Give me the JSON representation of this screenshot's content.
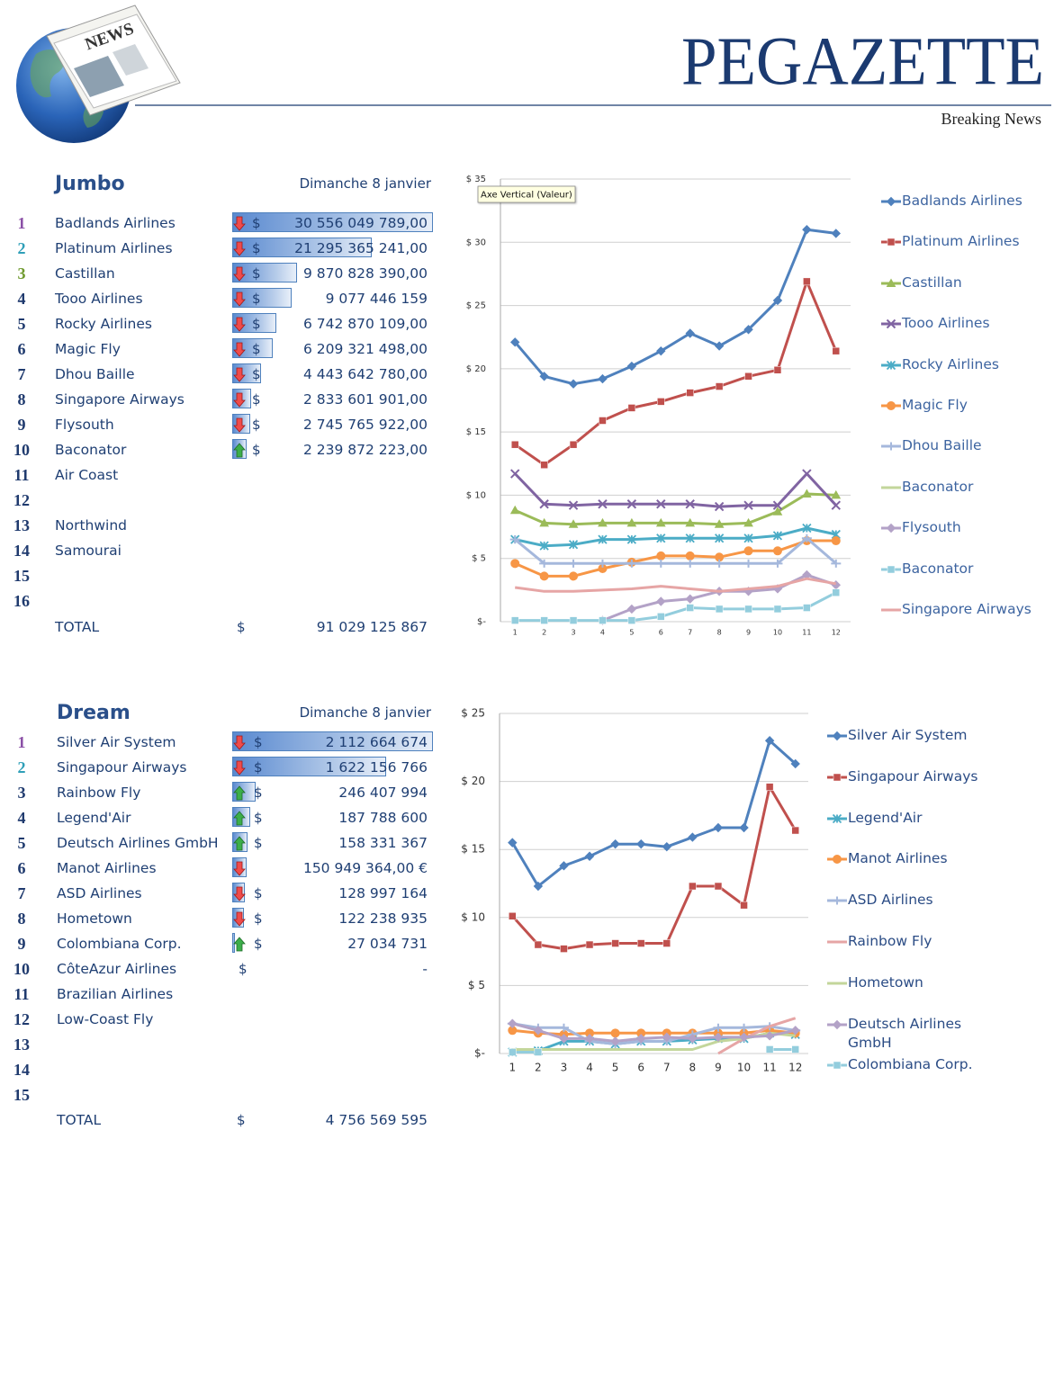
{
  "header": {
    "logo_text": "NEWS",
    "title": "PEGAZETTE",
    "subtitle": "Breaking News"
  },
  "sections": [
    {
      "title": "Jumbo",
      "date": "Dimanche 8 janvier",
      "rows": [
        {
          "rank": 1,
          "name": "Badlands Airlines",
          "trend": "down",
          "currency": "$",
          "amount": 30556049789.0,
          "amount_label": "30 556 049 789,00"
        },
        {
          "rank": 2,
          "name": "Platinum Airlines",
          "trend": "down",
          "currency": "$",
          "amount": 21295365241.0,
          "amount_label": "21 295 365 241,00"
        },
        {
          "rank": 3,
          "name": "Castillan",
          "trend": "down",
          "currency": "$",
          "amount": 9870828390.0,
          "amount_label": "9 870 828 390,00"
        },
        {
          "rank": 4,
          "name": "Tooo Airlines",
          "trend": "down",
          "currency": "$",
          "amount": 9077446159,
          "amount_label": "9 077 446 159"
        },
        {
          "rank": 5,
          "name": "Rocky Airlines",
          "trend": "down",
          "currency": "$",
          "amount": 6742870109.0,
          "amount_label": "6 742 870 109,00"
        },
        {
          "rank": 6,
          "name": "Magic Fly",
          "trend": "down",
          "currency": "$",
          "amount": 6209321498.0,
          "amount_label": "6 209 321 498,00"
        },
        {
          "rank": 7,
          "name": "Dhou Baille",
          "trend": "down",
          "currency": "$",
          "amount": 4443642780.0,
          "amount_label": "4 443 642 780,00"
        },
        {
          "rank": 8,
          "name": "Singapore Airways",
          "trend": "down",
          "currency": "$",
          "amount": 2833601901.0,
          "amount_label": "2 833 601 901,00"
        },
        {
          "rank": 9,
          "name": "Flysouth",
          "trend": "down",
          "currency": "$",
          "amount": 2745765922.0,
          "amount_label": "2 745 765 922,00"
        },
        {
          "rank": 10,
          "name": "Baconator",
          "trend": "up",
          "currency": "$",
          "amount": 2239872223.0,
          "amount_label": "2 239 872 223,00"
        },
        {
          "rank": 11,
          "name": "Air Coast"
        },
        {
          "rank": 12
        },
        {
          "rank": 13,
          "name": "Northwind"
        },
        {
          "rank": 14,
          "name": "Samourai"
        },
        {
          "rank": 15
        },
        {
          "rank": 16
        }
      ],
      "total": {
        "label": "TOTAL",
        "currency": "$",
        "amount_label": "91 029 125 867"
      }
    },
    {
      "title": "Dream",
      "date": "Dimanche 8 janvier",
      "rows": [
        {
          "rank": 1,
          "name": "Silver Air System",
          "trend": "down",
          "currency": "$",
          "amount": 2112664674,
          "amount_label": "2 112 664 674"
        },
        {
          "rank": 2,
          "name": "Singapour Airways",
          "trend": "down",
          "currency": "$",
          "amount": 1622156766,
          "amount_label": "1 622 156 766"
        },
        {
          "rank": 3,
          "name": "Rainbow Fly",
          "trend": "up",
          "currency": "$",
          "amount": 246407994,
          "amount_label": "246 407 994"
        },
        {
          "rank": 4,
          "name": "Legend'Air",
          "trend": "up",
          "currency": "$",
          "amount": 187788600,
          "amount_label": "187 788 600"
        },
        {
          "rank": 5,
          "name": "Deutsch Airlines GmbH",
          "trend": "up",
          "currency": "$",
          "amount": 158331367,
          "amount_label": "158 331 367"
        },
        {
          "rank": 6,
          "name": "Manot Airlines",
          "trend": "down",
          "amount": 150949364.0,
          "amount_label": "150 949 364,00 €"
        },
        {
          "rank": 7,
          "name": "ASD Airlines",
          "trend": "down",
          "currency": "$",
          "amount": 128997164,
          "amount_label": "128 997 164"
        },
        {
          "rank": 8,
          "name": "Hometown",
          "trend": "down",
          "currency": "$",
          "amount": 122238935,
          "amount_label": "122 238 935"
        },
        {
          "rank": 9,
          "name": "Colombiana Corp.",
          "trend": "up",
          "currency": "$",
          "amount": 27034731,
          "amount_label": "27 034 731"
        },
        {
          "rank": 10,
          "name": "CôteAzur Airlines",
          "currency": "$",
          "amount": 0,
          "amount_label": "-"
        },
        {
          "rank": 11,
          "name": "Brazilian Airlines"
        },
        {
          "rank": 12,
          "name": "Low-Coast Fly"
        },
        {
          "rank": 13
        },
        {
          "rank": 14
        },
        {
          "rank": 15
        }
      ],
      "total": {
        "label": "TOTAL",
        "currency": "$",
        "amount_label": "4 756 569 595"
      }
    }
  ],
  "chart_data": [
    {
      "type": "line",
      "annotation": "Axe Vertical (Valeur)",
      "categories": [
        1,
        2,
        3,
        4,
        5,
        6,
        7,
        8,
        9,
        10,
        11,
        12
      ],
      "ylim": [
        0,
        35
      ],
      "yticks": [
        {
          "value": 0,
          "label": "$-"
        },
        {
          "value": 5,
          "label": "$ 5"
        },
        {
          "value": 10,
          "label": "$ 10"
        },
        {
          "value": 15,
          "label": "$ 15"
        },
        {
          "value": 20,
          "label": "$ 20"
        },
        {
          "value": 25,
          "label": "$ 25"
        },
        {
          "value": 30,
          "label": "$ 30"
        },
        {
          "value": 35,
          "label": "$ 35"
        }
      ],
      "grid": true,
      "series": [
        {
          "name": "Badlands Airlines",
          "color": "#4f81bd",
          "marker": "diamond",
          "values": [
            22.1,
            19.4,
            18.8,
            19.2,
            20.2,
            21.4,
            22.8,
            21.8,
            23.1,
            25.4,
            31.0,
            30.7
          ]
        },
        {
          "name": "Platinum Airlines",
          "color": "#c0504d",
          "marker": "square",
          "values": [
            14.0,
            12.4,
            14.0,
            15.9,
            16.9,
            17.4,
            18.1,
            18.6,
            19.4,
            19.9,
            26.9,
            21.4
          ]
        },
        {
          "name": "Castillan",
          "color": "#9bbb59",
          "marker": "triangle",
          "values": [
            8.8,
            7.8,
            7.7,
            7.8,
            7.8,
            7.8,
            7.8,
            7.7,
            7.8,
            8.7,
            10.1,
            10.0
          ]
        },
        {
          "name": "Tooo Airlines",
          "color": "#8064a2",
          "marker": "x",
          "values": [
            11.7,
            9.3,
            9.2,
            9.3,
            9.3,
            9.3,
            9.3,
            9.1,
            9.2,
            9.2,
            11.7,
            9.2
          ]
        },
        {
          "name": "Rocky Airlines",
          "color": "#4bacc6",
          "marker": "star",
          "values": [
            6.5,
            6.0,
            6.1,
            6.5,
            6.5,
            6.6,
            6.6,
            6.6,
            6.6,
            6.8,
            7.4,
            6.9
          ]
        },
        {
          "name": "Magic Fly",
          "color": "#f79646",
          "marker": "circle",
          "values": [
            4.6,
            3.6,
            3.6,
            4.2,
            4.7,
            5.2,
            5.2,
            5.1,
            5.6,
            5.6,
            6.4,
            6.4
          ]
        },
        {
          "name": "Dhou Baille",
          "color": "#a5b8dc",
          "marker": "plus",
          "values": [
            6.5,
            4.6,
            4.6,
            4.6,
            4.6,
            4.6,
            4.6,
            4.6,
            4.6,
            4.6,
            6.6,
            4.6
          ]
        },
        {
          "name": "Baconator",
          "color": "#c3d69b",
          "marker": "none",
          "values": [
            null,
            null,
            null,
            null,
            null,
            null,
            null,
            null,
            null,
            null,
            null,
            null
          ]
        },
        {
          "name": "Flysouth",
          "color": "#b3a2c7",
          "marker": "diamond",
          "values": [
            null,
            null,
            null,
            0.1,
            1.0,
            1.6,
            1.8,
            2.4,
            2.4,
            2.6,
            3.7,
            2.9
          ]
        },
        {
          "name": "Baconator",
          "color": "#93cddd",
          "marker": "square",
          "values": [
            0.1,
            0.1,
            0.1,
            0.1,
            0.1,
            0.4,
            1.1,
            1.0,
            1.0,
            1.0,
            1.1,
            2.3
          ]
        },
        {
          "name": "Singapore Airways",
          "color": "#e6a5a5",
          "marker": "none",
          "values": [
            2.7,
            2.4,
            2.4,
            2.5,
            2.6,
            2.8,
            2.6,
            2.4,
            2.6,
            2.8,
            3.4,
            3.0
          ]
        }
      ]
    },
    {
      "type": "line",
      "categories": [
        1,
        2,
        3,
        4,
        5,
        6,
        7,
        8,
        9,
        10,
        11,
        12
      ],
      "ylim": [
        0,
        25
      ],
      "yticks": [
        {
          "value": 0,
          "label": "$-"
        },
        {
          "value": 5,
          "label": "$ 5"
        },
        {
          "value": 10,
          "label": "$ 10"
        },
        {
          "value": 15,
          "label": "$ 15"
        },
        {
          "value": 20,
          "label": "$ 20"
        },
        {
          "value": 25,
          "label": "$ 25"
        }
      ],
      "grid": true,
      "series": [
        {
          "name": "Silver Air System",
          "color": "#4f81bd",
          "marker": "diamond",
          "values": [
            15.5,
            12.3,
            13.8,
            14.5,
            15.4,
            15.4,
            15.2,
            15.9,
            16.6,
            16.6,
            23.0,
            21.3
          ]
        },
        {
          "name": "Singapour Airways",
          "color": "#c0504d",
          "marker": "square",
          "values": [
            10.1,
            8.0,
            7.7,
            8.0,
            8.1,
            8.1,
            8.1,
            12.3,
            12.3,
            10.9,
            19.6,
            16.4
          ]
        },
        {
          "name": "Legend'Air",
          "color": "#4bacc6",
          "marker": "star",
          "values": [
            0.1,
            0.2,
            0.9,
            0.9,
            0.7,
            0.9,
            0.9,
            1.0,
            1.1,
            1.1,
            1.5,
            1.4
          ]
        },
        {
          "name": "Manot Airlines",
          "color": "#f79646",
          "marker": "circle",
          "values": [
            1.7,
            1.5,
            1.4,
            1.5,
            1.5,
            1.5,
            1.5,
            1.5,
            1.5,
            1.5,
            1.7,
            1.5
          ]
        },
        {
          "name": "ASD Airlines",
          "color": "#a5b8dc",
          "marker": "plus",
          "values": [
            2.2,
            1.9,
            1.9,
            0.9,
            0.7,
            0.9,
            0.9,
            1.4,
            1.9,
            1.9,
            2.0,
            1.7
          ]
        },
        {
          "name": "Rainbow Fly",
          "color": "#e6a5a5",
          "marker": "none",
          "values": [
            null,
            null,
            null,
            null,
            null,
            null,
            null,
            null,
            0.0,
            1.1,
            2.0,
            2.6
          ]
        },
        {
          "name": "Hometown",
          "color": "#c3d69b",
          "marker": "none",
          "values": [
            0.3,
            0.3,
            0.3,
            0.3,
            0.3,
            0.3,
            0.3,
            0.3,
            0.9,
            1.1,
            1.5,
            1.3
          ]
        },
        {
          "name": "Deutsch Airlines GmbH",
          "color": "#b3a2c7",
          "marker": "diamond",
          "values": [
            2.2,
            1.7,
            1.1,
            1.1,
            0.9,
            1.1,
            1.2,
            1.1,
            1.2,
            1.2,
            1.3,
            1.7
          ]
        },
        {
          "name": "Colombiana Corp.",
          "color": "#93cddd",
          "marker": "square",
          "values": [
            0.1,
            0.1,
            null,
            null,
            null,
            null,
            null,
            null,
            null,
            null,
            0.3,
            0.3
          ]
        }
      ]
    }
  ]
}
